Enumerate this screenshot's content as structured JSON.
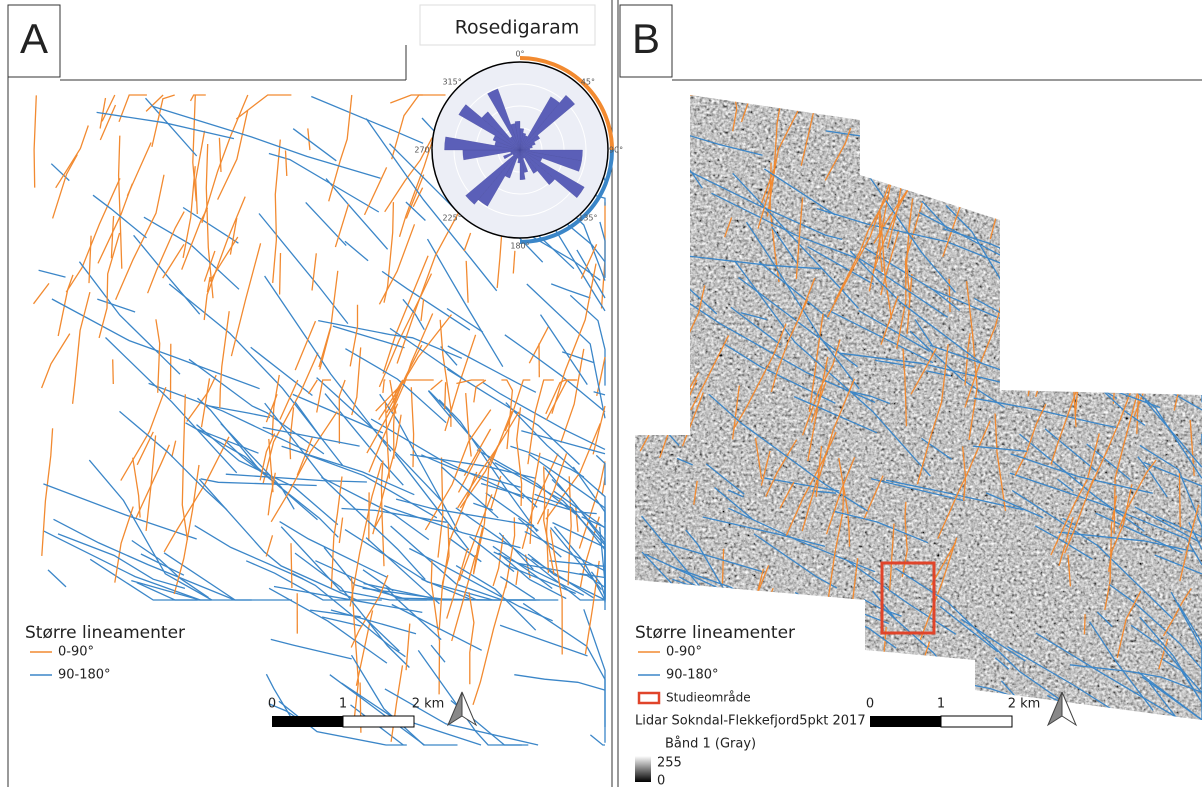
{
  "panels": [
    {
      "label": "A",
      "inset_title": "Rosedigaram",
      "rose_labels": [
        "0°",
        "45°",
        "90°",
        "135°",
        "180°",
        "225°",
        "270°",
        "315°"
      ],
      "legend": {
        "title": "Større lineamenter",
        "items": [
          "0-90°",
          "90-180°"
        ]
      },
      "scale": [
        "0",
        "1",
        "2 km"
      ]
    },
    {
      "label": "B",
      "legend": {
        "title": "Større lineamenter",
        "items": [
          "0-90°",
          "90-180°",
          "Studieområde"
        ],
        "raster": {
          "name": "Lidar Sokndal-Flekkefjord5pkt 2017",
          "band": "Bånd 1 (Gray)",
          "max": "255",
          "min": "0"
        }
      },
      "scale": [
        "0",
        "1",
        "2 km"
      ]
    }
  ]
}
